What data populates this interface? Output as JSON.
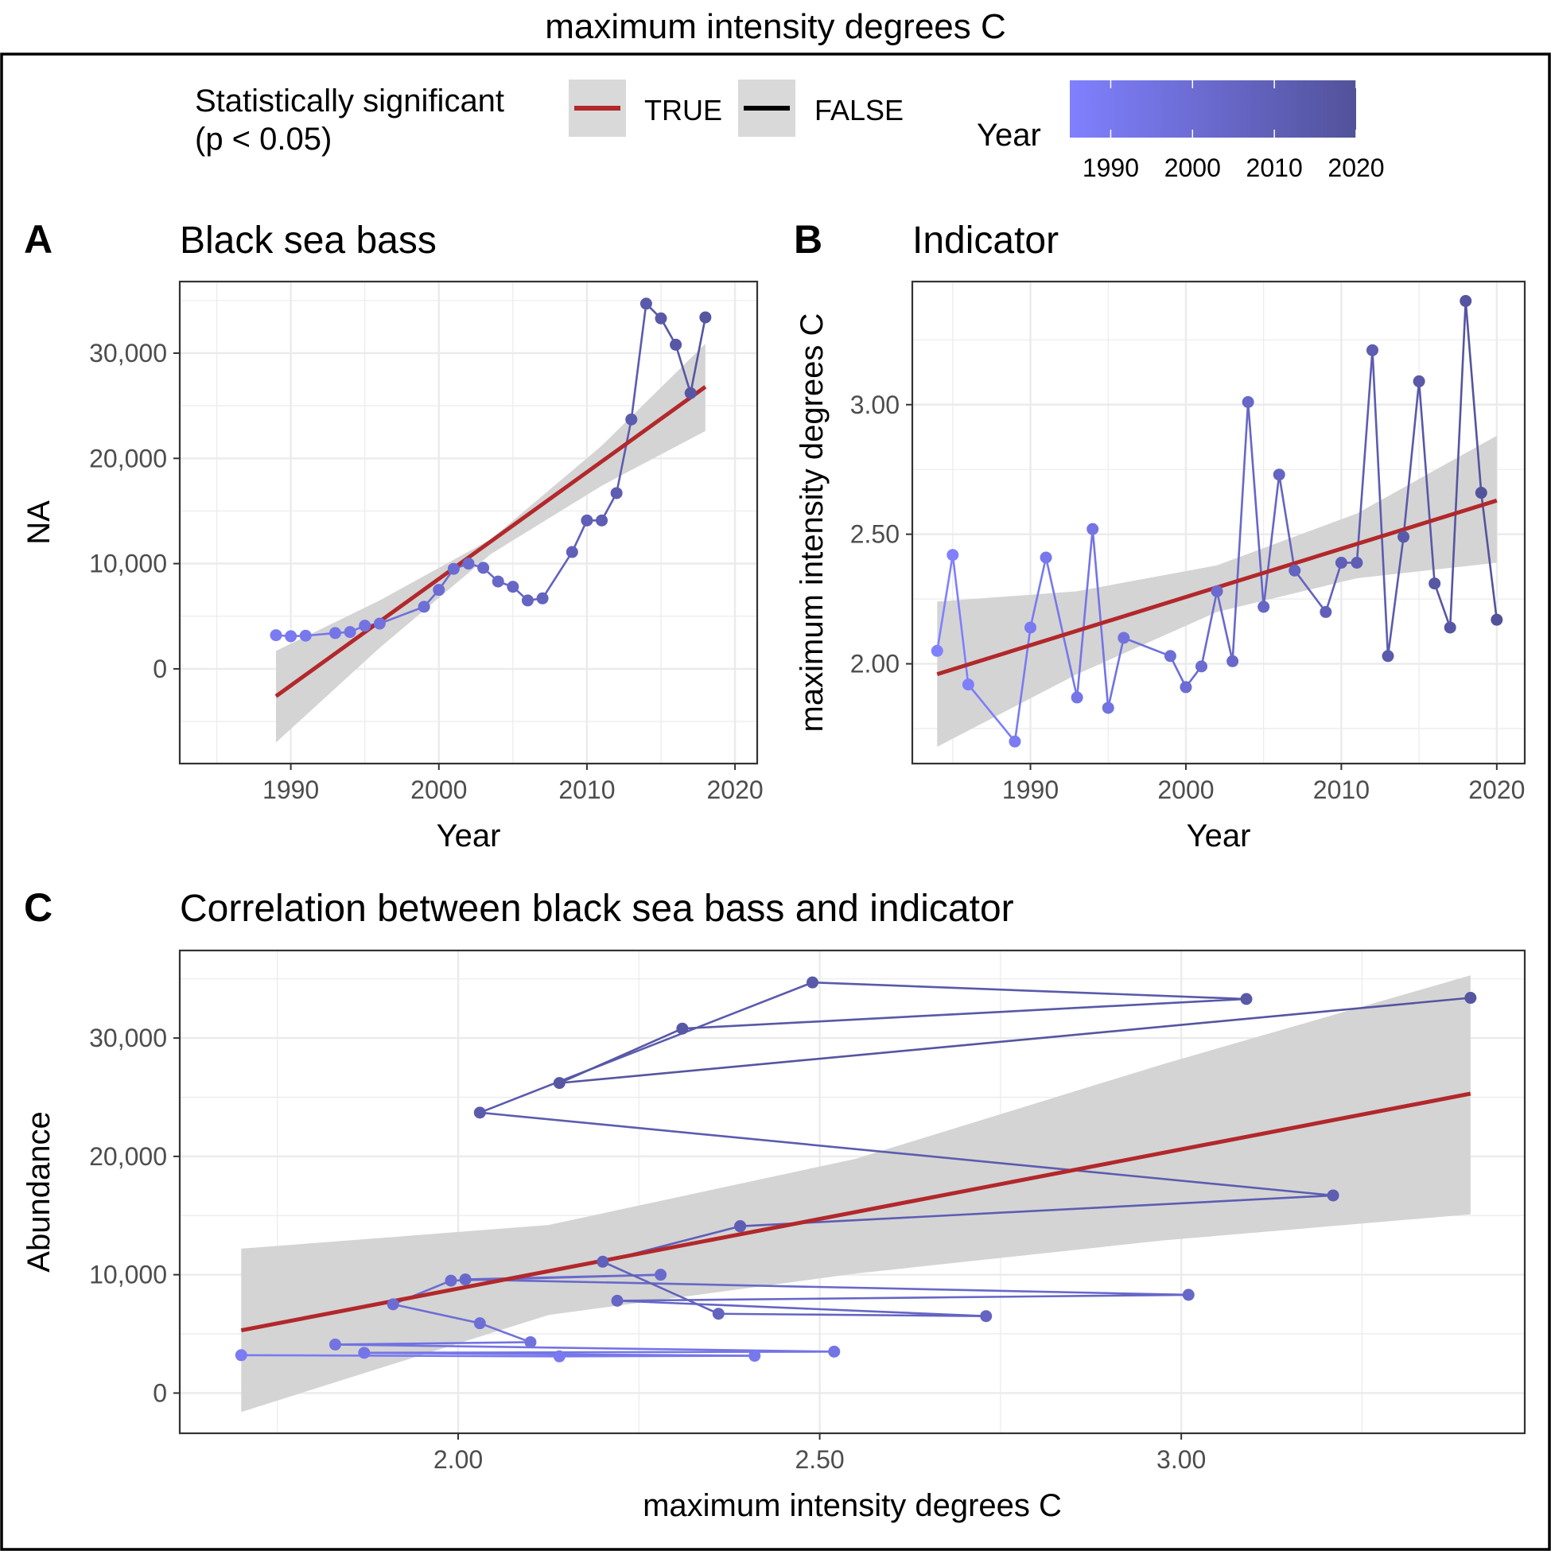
{
  "figure_title": "maximum intensity degrees C",
  "legend": {
    "sig_title_line1": "Statistically significant",
    "sig_title_line2": "(p < 0.05)",
    "true_label": "TRUE",
    "false_label": "FALSE",
    "true_color": "#b2282b",
    "false_color": "#000000",
    "year_title": "Year",
    "year_ticks": [
      "1990",
      "2000",
      "2010",
      "2020"
    ],
    "year_range": [
      1985,
      2020
    ],
    "gradient_low": "#8080ff",
    "gradient_high": "#52529a"
  },
  "colors": {
    "ribbon": "#d4d4d4",
    "trend": "#b2282b",
    "grid": "#ebebeb",
    "point_low": "#8080ff",
    "point_high": "#52529a"
  },
  "chart_data": [
    {
      "panel_letter": "A",
      "type": "line",
      "title": "Black sea bass",
      "xlabel": "Year",
      "ylabel": "NA",
      "xlim": [
        1982.5,
        2021.5
      ],
      "ylim": [
        -9000,
        36800
      ],
      "xticks": [
        1990,
        2000,
        2010,
        2020
      ],
      "xtick_labels": [
        "1990",
        "2000",
        "2010",
        "2020"
      ],
      "yticks": [
        0,
        10000,
        20000,
        30000
      ],
      "ytick_labels": [
        "0",
        "10,000",
        "20,000",
        "30,000"
      ],
      "points": [
        [
          1989,
          3200
        ],
        [
          1990,
          3100
        ],
        [
          1991,
          3150
        ],
        [
          1993,
          3400
        ],
        [
          1994,
          3500
        ],
        [
          1995,
          4100
        ],
        [
          1996,
          4300
        ],
        [
          1999,
          5900
        ],
        [
          2000,
          7500
        ],
        [
          2001,
          9500
        ],
        [
          2002,
          10000
        ],
        [
          2003,
          9600
        ],
        [
          2004,
          8300
        ],
        [
          2005,
          7800
        ],
        [
          2006,
          6500
        ],
        [
          2007,
          6700
        ],
        [
          2009,
          11100
        ],
        [
          2010,
          14100
        ],
        [
          2011,
          14100
        ],
        [
          2012,
          16700
        ],
        [
          2013,
          23700
        ],
        [
          2014,
          34700
        ],
        [
          2015,
          33300
        ],
        [
          2016,
          30800
        ],
        [
          2017,
          26200
        ],
        [
          2018,
          33400
        ]
      ],
      "trend": {
        "significant": true,
        "x": [
          1989,
          2018
        ],
        "y": [
          -2600,
          26800
        ]
      },
      "ribbon": {
        "x": [
          1989,
          1996,
          2003.5,
          2011,
          2018
        ],
        "lower": [
          -7000,
          2000,
          10900,
          17400,
          22600
        ],
        "upper": [
          1700,
          6500,
          12300,
          21200,
          30900
        ]
      }
    },
    {
      "panel_letter": "B",
      "type": "line",
      "title": "Indicator",
      "xlabel": "Year",
      "ylabel": "maximum intensity degrees C",
      "xlim": [
        1982.4,
        2021.8
      ],
      "ylim": [
        1.615,
        3.475
      ],
      "xticks": [
        1990,
        2000,
        2010,
        2020
      ],
      "xtick_labels": [
        "1990",
        "2000",
        "2010",
        "2020"
      ],
      "yticks": [
        2.0,
        2.5,
        3.0
      ],
      "ytick_labels": [
        "2.00",
        "2.50",
        "3.00"
      ],
      "points": [
        [
          1984,
          2.05
        ],
        [
          1985,
          2.42
        ],
        [
          1986,
          1.92
        ],
        [
          1989,
          1.7
        ],
        [
          1990,
          2.14
        ],
        [
          1991,
          2.41
        ],
        [
          1993,
          1.87
        ],
        [
          1994,
          2.52
        ],
        [
          1995,
          1.83
        ],
        [
          1996,
          2.1
        ],
        [
          1999,
          2.03
        ],
        [
          2000,
          1.91
        ],
        [
          2001,
          1.99
        ],
        [
          2002,
          2.28
        ],
        [
          2003,
          2.01
        ],
        [
          2004,
          3.01
        ],
        [
          2005,
          2.22
        ],
        [
          2006,
          2.73
        ],
        [
          2007,
          2.36
        ],
        [
          2009,
          2.2
        ],
        [
          2010,
          2.39
        ],
        [
          2011,
          2.39
        ],
        [
          2012,
          3.21
        ],
        [
          2013,
          2.03
        ],
        [
          2014,
          2.49
        ],
        [
          2015,
          3.09
        ],
        [
          2016,
          2.31
        ],
        [
          2017,
          2.14
        ],
        [
          2018,
          3.4
        ],
        [
          2019,
          2.66
        ],
        [
          2020,
          2.17
        ]
      ],
      "trend": {
        "significant": true,
        "x": [
          1984,
          2020
        ],
        "y": [
          1.96,
          2.63
        ]
      },
      "ribbon": {
        "x": [
          1984,
          1993,
          2002,
          2011,
          2020
        ],
        "lower": [
          1.68,
          1.96,
          2.2,
          2.33,
          2.39
        ],
        "upper": [
          2.24,
          2.28,
          2.38,
          2.58,
          2.88
        ]
      }
    },
    {
      "panel_letter": "C",
      "type": "line",
      "title": "Correlation between black sea bass and indicator",
      "xlabel": "maximum intensity degrees C",
      "ylabel": "Abundance",
      "xlim": [
        1.615,
        3.475
      ],
      "ylim": [
        -3400,
        37400
      ],
      "xticks": [
        2.0,
        2.5,
        3.0
      ],
      "xtick_labels": [
        "2.00",
        "2.50",
        "3.00"
      ],
      "yticks": [
        0,
        10000,
        20000,
        30000
      ],
      "ytick_labels": [
        "0",
        "10,000",
        "20,000",
        "30,000"
      ],
      "points": [
        [
          1.7,
          3200,
          1989
        ],
        [
          2.14,
          3100,
          1990
        ],
        [
          2.41,
          3150,
          1991
        ],
        [
          1.87,
          3400,
          1993
        ],
        [
          2.52,
          3500,
          1994
        ],
        [
          1.83,
          4100,
          1995
        ],
        [
          2.1,
          4300,
          1996
        ],
        [
          2.03,
          5900,
          1999
        ],
        [
          1.91,
          7500,
          2000
        ],
        [
          1.99,
          9500,
          2001
        ],
        [
          2.28,
          10000,
          2002
        ],
        [
          2.01,
          9600,
          2003
        ],
        [
          3.01,
          8300,
          2004
        ],
        [
          2.22,
          7800,
          2005
        ],
        [
          2.73,
          6500,
          2006
        ],
        [
          2.36,
          6700,
          2007
        ],
        [
          2.2,
          11100,
          2009
        ],
        [
          2.39,
          14100,
          2010
        ],
        [
          2.39,
          14100,
          2011
        ],
        [
          3.21,
          16700,
          2012
        ],
        [
          2.03,
          23700,
          2013
        ],
        [
          2.49,
          34700,
          2014
        ],
        [
          3.09,
          33300,
          2015
        ],
        [
          2.31,
          30800,
          2016
        ],
        [
          2.14,
          26200,
          2017
        ],
        [
          3.4,
          33400,
          2018
        ]
      ],
      "trend": {
        "significant": true,
        "x": [
          1.7,
          3.4
        ],
        "y": [
          5300,
          25300
        ]
      },
      "ribbon": {
        "x": [
          1.7,
          2.125,
          2.55,
          2.975,
          3.4
        ],
        "lower": [
          -1600,
          6600,
          10100,
          12900,
          15100
        ],
        "upper": [
          12200,
          14200,
          19800,
          27800,
          35300
        ]
      }
    }
  ]
}
